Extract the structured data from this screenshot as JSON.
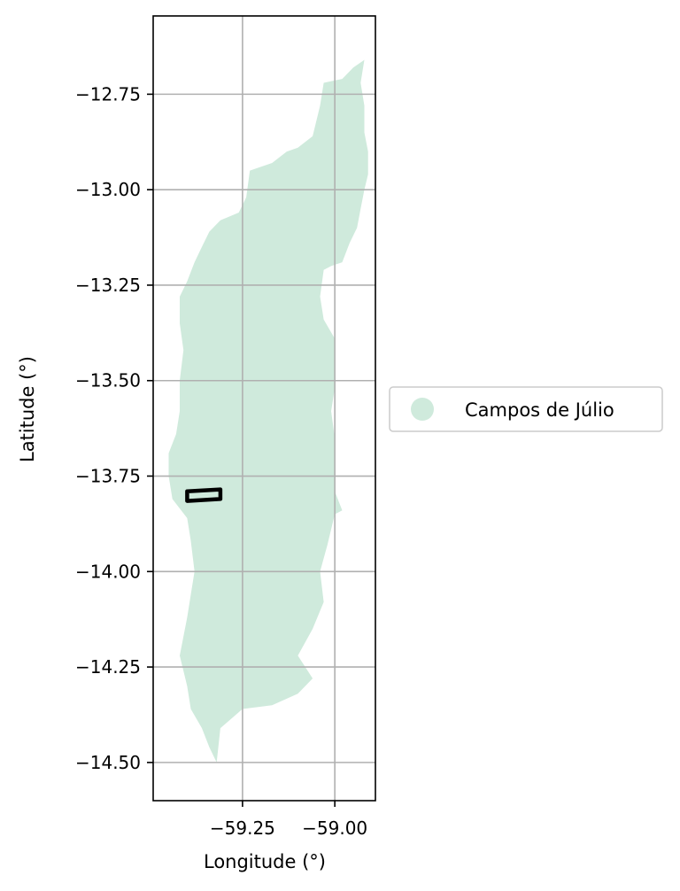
{
  "map": {
    "xlabel": "Longitude (°)",
    "ylabel": "Latitude (°)",
    "xlim": [
      -59.492,
      -58.89
    ],
    "ylim": [
      -14.6,
      -12.545
    ],
    "x_ticks": [
      -59.25,
      -59.0
    ],
    "x_tick_labels": [
      "−59.25",
      "−59.00"
    ],
    "y_ticks": [
      -12.75,
      -13.0,
      -13.25,
      -13.5,
      -13.75,
      -14.0,
      -14.25,
      -14.5
    ],
    "y_tick_labels": [
      "−12.75",
      "−13.00",
      "−13.25",
      "−13.50",
      "−13.75",
      "−14.00",
      "−14.25",
      "−14.50"
    ],
    "grid": true,
    "legend_position": "right, outside",
    "region": {
      "name": "Campos de Júlio",
      "color": "#cfeadc",
      "outline": [
        [
          -58.92,
          -12.66
        ],
        [
          -58.95,
          -12.68
        ],
        [
          -58.98,
          -12.71
        ],
        [
          -59.03,
          -12.72
        ],
        [
          -59.04,
          -12.78
        ],
        [
          -59.06,
          -12.86
        ],
        [
          -59.1,
          -12.89
        ],
        [
          -59.13,
          -12.9
        ],
        [
          -59.17,
          -12.93
        ],
        [
          -59.23,
          -12.95
        ],
        [
          -59.24,
          -13.02
        ],
        [
          -59.26,
          -13.06
        ],
        [
          -59.31,
          -13.08
        ],
        [
          -59.34,
          -13.11
        ],
        [
          -59.36,
          -13.15
        ],
        [
          -59.38,
          -13.19
        ],
        [
          -59.4,
          -13.24
        ],
        [
          -59.42,
          -13.28
        ],
        [
          -59.42,
          -13.35
        ],
        [
          -59.41,
          -13.42
        ],
        [
          -59.42,
          -13.5
        ],
        [
          -59.42,
          -13.58
        ],
        [
          -59.43,
          -13.64
        ],
        [
          -59.45,
          -13.69
        ],
        [
          -59.45,
          -13.75
        ],
        [
          -59.44,
          -13.81
        ],
        [
          -59.4,
          -13.86
        ],
        [
          -59.39,
          -13.92
        ],
        [
          -59.38,
          -14.0
        ],
        [
          -59.39,
          -14.06
        ],
        [
          -59.4,
          -14.12
        ],
        [
          -59.41,
          -14.17
        ],
        [
          -59.42,
          -14.22
        ],
        [
          -59.4,
          -14.3
        ],
        [
          -59.39,
          -14.36
        ],
        [
          -59.36,
          -14.41
        ],
        [
          -59.34,
          -14.46
        ],
        [
          -59.32,
          -14.5
        ],
        [
          -59.31,
          -14.41
        ],
        [
          -59.25,
          -14.36
        ],
        [
          -59.17,
          -14.35
        ],
        [
          -59.1,
          -14.32
        ],
        [
          -59.06,
          -14.28
        ],
        [
          -59.1,
          -14.22
        ],
        [
          -59.06,
          -14.15
        ],
        [
          -59.03,
          -14.08
        ],
        [
          -59.04,
          -14.0
        ],
        [
          -59.02,
          -13.93
        ],
        [
          -59.0,
          -13.85
        ],
        [
          -58.98,
          -13.84
        ],
        [
          -59.0,
          -13.79
        ],
        [
          -59.0,
          -13.72
        ],
        [
          -59.0,
          -13.65
        ],
        [
          -59.01,
          -13.58
        ],
        [
          -59.0,
          -13.52
        ],
        [
          -59.0,
          -13.45
        ],
        [
          -59.0,
          -13.39
        ],
        [
          -59.03,
          -13.34
        ],
        [
          -59.04,
          -13.28
        ],
        [
          -59.03,
          -13.21
        ],
        [
          -59.01,
          -13.2
        ],
        [
          -58.98,
          -13.19
        ],
        [
          -58.96,
          -13.14
        ],
        [
          -58.94,
          -13.1
        ],
        [
          -58.93,
          -13.05
        ],
        [
          -58.92,
          -13.0
        ],
        [
          -58.91,
          -12.96
        ],
        [
          -58.91,
          -12.9
        ],
        [
          -58.92,
          -12.85
        ],
        [
          -58.92,
          -12.78
        ],
        [
          -58.93,
          -12.72
        ],
        [
          -58.92,
          -12.66
        ]
      ]
    },
    "marker": {
      "outline": [
        [
          -59.4,
          -13.79
        ],
        [
          -59.31,
          -13.785
        ],
        [
          -59.31,
          -13.81
        ],
        [
          -59.4,
          -13.815
        ],
        [
          -59.4,
          -13.79
        ]
      ],
      "color": "#000000"
    }
  }
}
